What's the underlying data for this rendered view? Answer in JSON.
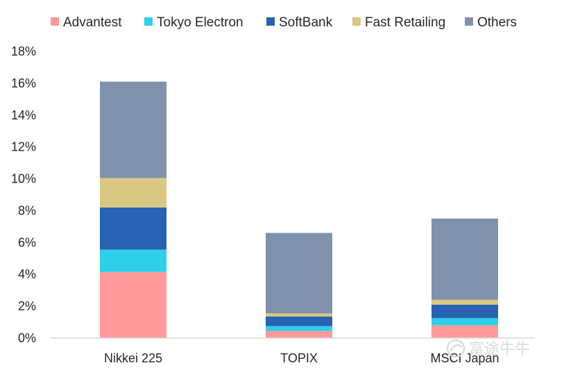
{
  "chart_data": {
    "type": "bar",
    "stacked": true,
    "categories": [
      "Nikkei 225",
      "TOPIX",
      "MSCI Japan"
    ],
    "series": [
      {
        "name": "Advantest",
        "color": "#ff9a9a",
        "values": [
          4.15,
          0.45,
          0.8
        ]
      },
      {
        "name": "Tokyo Electron",
        "color": "#2ecfea",
        "values": [
          1.4,
          0.3,
          0.45
        ]
      },
      {
        "name": "SoftBank",
        "color": "#2762b3",
        "values": [
          2.65,
          0.6,
          0.85
        ]
      },
      {
        "name": "Fast Retailing",
        "color": "#d8c882",
        "values": [
          1.85,
          0.2,
          0.3
        ]
      },
      {
        "name": "Others",
        "color": "#8092ab",
        "values": [
          6.05,
          5.05,
          5.1
        ]
      }
    ],
    "y_ticks": [
      "0%",
      "2%",
      "4%",
      "6%",
      "8%",
      "10%",
      "12%",
      "14%",
      "16%",
      "18%"
    ],
    "ylim": [
      0,
      18
    ],
    "grid": false,
    "legend_position": "top"
  },
  "watermark": {
    "text": "富途牛牛",
    "icon": "futu-logo-icon"
  }
}
